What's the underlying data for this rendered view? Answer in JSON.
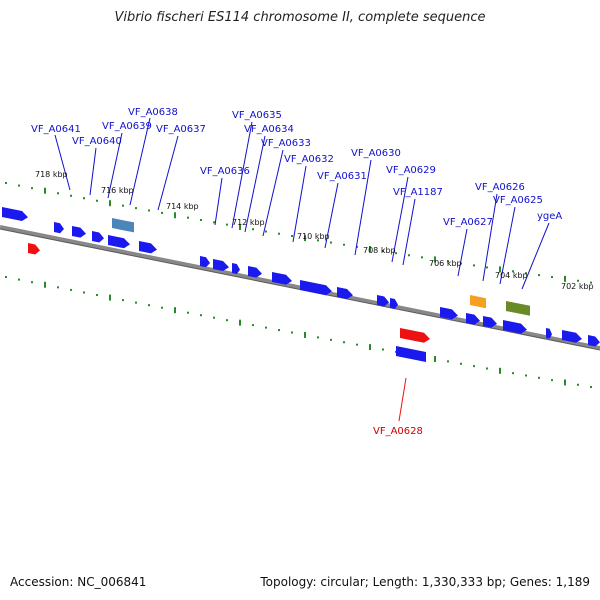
{
  "title": "Vibrio fischeri ES114 chromosome II, complete sequence",
  "footer": {
    "accession": "Accession: NC_006841",
    "summary": "Topology: circular; Length: 1,330,333 bp; Genes: 1,189"
  },
  "colors": {
    "forward_gene": "#1a1aee",
    "reverse_gene": "#ee1111",
    "backbone": "#888888",
    "ticks": "#2a8a2a",
    "label_blue": "#1111cc",
    "label_red": "#cc0000",
    "steelblue_feature": "#4a86b8",
    "orange_feature": "#f5a020",
    "green_feature": "#6a8a28"
  },
  "tick_labels": [
    "718 kbp",
    "716 kbp",
    "714 kbp",
    "712 kbp",
    "710 kbp",
    "708 kbp",
    "706 kbp",
    "704 kbp",
    "702 kbp"
  ],
  "gene_labels": [
    "VF_A0641",
    "VF_A0640",
    "VF_A0639",
    "VF_A0638",
    "VF_A0637",
    "VF_A0636",
    "VF_A0635",
    "VF_A0634",
    "VF_A0633",
    "VF_A0632",
    "VF_A0631",
    "VF_A0630",
    "VF_A0629",
    "VF_A1187",
    "VF_A0627",
    "VF_A0626",
    "VF_A0625",
    "ygeA",
    "VF_A0628"
  ]
}
